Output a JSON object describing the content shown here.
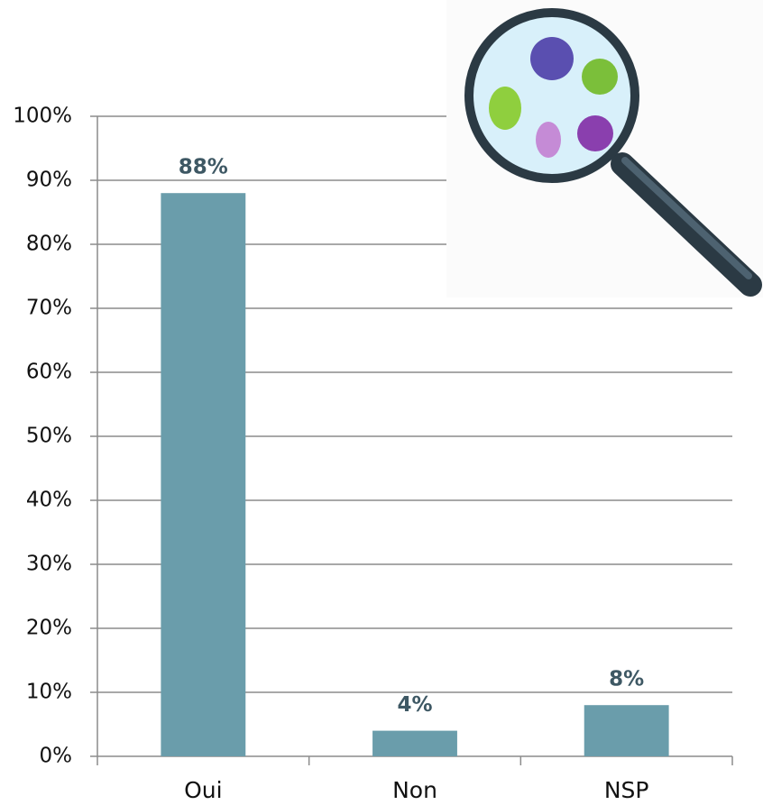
{
  "chart_data": {
    "type": "bar",
    "categories": [
      "Oui",
      "Non",
      "NSP"
    ],
    "values": [
      88,
      4,
      8
    ],
    "value_labels": [
      "88%",
      "4%",
      "8%"
    ],
    "color": "#6a9dab",
    "ylim": [
      0,
      100
    ],
    "yticks": [
      {
        "value": 0,
        "label": "0%"
      },
      {
        "value": 10,
        "label": "10%"
      },
      {
        "value": 20,
        "label": "20%"
      },
      {
        "value": 30,
        "label": "30%"
      },
      {
        "value": 40,
        "label": "40%"
      },
      {
        "value": 50,
        "label": "50%"
      },
      {
        "value": 60,
        "label": "60%"
      },
      {
        "value": 70,
        "label": "70%"
      },
      {
        "value": 80,
        "label": "80%"
      },
      {
        "value": 90,
        "label": "90%"
      },
      {
        "value": 100,
        "label": "100%"
      }
    ],
    "grid": true
  }
}
